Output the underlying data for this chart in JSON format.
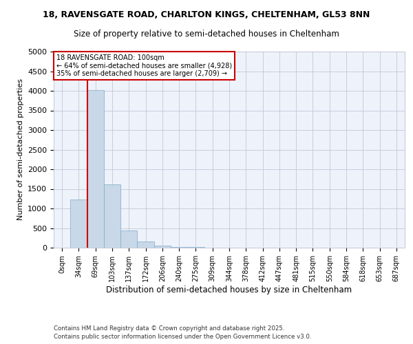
{
  "title1": "18, RAVENSGATE ROAD, CHARLTON KINGS, CHELTENHAM, GL53 8NN",
  "title2": "Size of property relative to semi-detached houses in Cheltenham",
  "xlabel": "Distribution of semi-detached houses by size in Cheltenham",
  "ylabel": "Number of semi-detached properties",
  "bar_labels": [
    "0sqm",
    "34sqm",
    "69sqm",
    "103sqm",
    "137sqm",
    "172sqm",
    "206sqm",
    "240sqm",
    "275sqm",
    "309sqm",
    "344sqm",
    "378sqm",
    "412sqm",
    "447sqm",
    "481sqm",
    "515sqm",
    "550sqm",
    "584sqm",
    "618sqm",
    "653sqm",
    "687sqm"
  ],
  "bar_values": [
    0,
    1230,
    4020,
    1620,
    430,
    160,
    50,
    20,
    10,
    5,
    2,
    1,
    0,
    0,
    0,
    0,
    0,
    0,
    0,
    0,
    0
  ],
  "annotation_title": "18 RAVENSGATE ROAD: 100sqm",
  "annotation_line1": "← 64% of semi-detached houses are smaller (4,928)",
  "annotation_line2": "35% of semi-detached houses are larger (2,709) →",
  "vline_bin": 2,
  "ylim": [
    0,
    5000
  ],
  "yticks": [
    0,
    500,
    1000,
    1500,
    2000,
    2500,
    3000,
    3500,
    4000,
    4500,
    5000
  ],
  "bar_color": "#c8d8e8",
  "bar_edge_color": "#7aaac8",
  "vline_color": "#cc0000",
  "annotation_box_color": "#cc0000",
  "bg_color": "#eef2fa",
  "grid_color": "#c0c8d8",
  "footer1": "Contains HM Land Registry data © Crown copyright and database right 2025.",
  "footer2": "Contains public sector information licensed under the Open Government Licence v3.0."
}
